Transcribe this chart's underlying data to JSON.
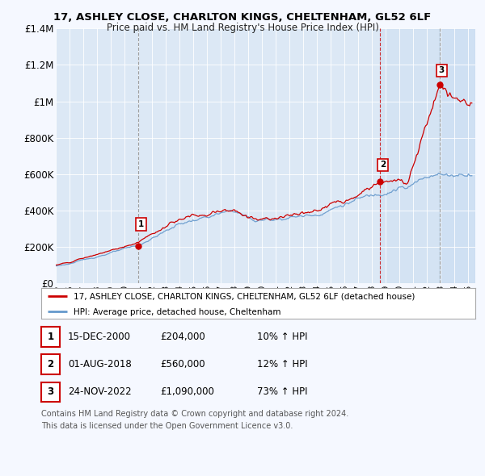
{
  "title": "17, ASHLEY CLOSE, CHARLTON KINGS, CHELTENHAM, GL52 6LF",
  "subtitle": "Price paid vs. HM Land Registry's House Price Index (HPI)",
  "hpi_label": "HPI: Average price, detached house, Cheltenham",
  "property_label": "17, ASHLEY CLOSE, CHARLTON KINGS, CHELTENHAM, GL52 6LF (detached house)",
  "property_color": "#cc0000",
  "hpi_color": "#6699cc",
  "ylim": [
    0,
    1400000
  ],
  "yticks": [
    0,
    200000,
    400000,
    600000,
    800000,
    1000000,
    1200000,
    1400000
  ],
  "ytick_labels": [
    "£0",
    "£200K",
    "£400K",
    "£600K",
    "£800K",
    "£1M",
    "£1.2M",
    "£1.4M"
  ],
  "xlim_start": 1995,
  "xlim_end": 2025.5,
  "transactions": [
    {
      "label": "1",
      "date": "15-DEC-2000",
      "price": 204000,
      "hpi_pct": "10%",
      "x": 2001.0,
      "vline_style": "dashed_gray"
    },
    {
      "label": "2",
      "date": "01-AUG-2018",
      "price": 560000,
      "hpi_pct": "12%",
      "x": 2018.58,
      "vline_style": "dashed_red"
    },
    {
      "label": "3",
      "date": "24-NOV-2022",
      "price": 1090000,
      "hpi_pct": "73%",
      "x": 2022.9,
      "vline_style": "dashed_gray"
    }
  ],
  "footer1": "Contains HM Land Registry data © Crown copyright and database right 2024.",
  "footer2": "This data is licensed under the Open Government Licence v3.0.",
  "background_color": "#f5f8ff",
  "plot_bg_color": "#dce8f5",
  "grid_color": "#ffffff",
  "grid_color2": "#cccccc"
}
